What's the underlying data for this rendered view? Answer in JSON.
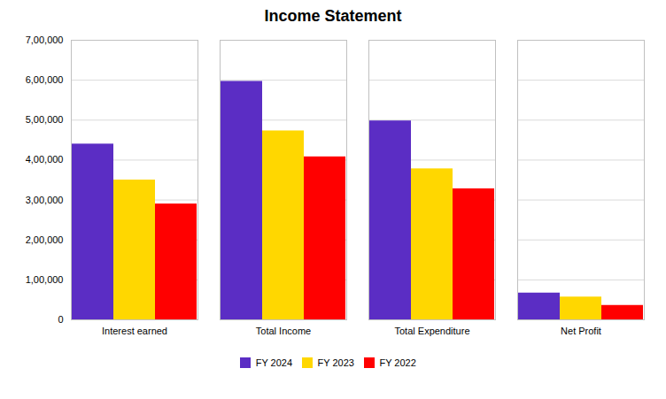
{
  "chart_data": {
    "type": "bar",
    "title": "Income Statement",
    "categories": [
      "Interest earned",
      "Total Income",
      "Total Expenditure",
      "Net Profit"
    ],
    "series": [
      {
        "name": "FY 2024",
        "color": "#5B2DC4",
        "values": [
          440000,
          597000,
          498000,
          67000
        ]
      },
      {
        "name": "FY 2023",
        "color": "#FFD700",
        "values": [
          350000,
          473000,
          378000,
          57000
        ]
      },
      {
        "name": "FY 2022",
        "color": "#FF0000",
        "values": [
          290000,
          408000,
          328000,
          36000
        ]
      }
    ],
    "ylim": [
      0,
      700000
    ],
    "yticks": [
      0,
      {
        "value": 100000,
        "label": "1,00,000"
      },
      {
        "value": 200000,
        "label": "2,00,000"
      },
      {
        "value": 300000,
        "label": "3,00,000"
      },
      {
        "value": 400000,
        "label": "4,00,000"
      },
      {
        "value": 500000,
        "label": "5,00,000"
      },
      {
        "value": 600000,
        "label": "6,00,000"
      },
      {
        "value": 700000,
        "label": "7,00,000"
      }
    ],
    "grid": true,
    "legend": "bottom"
  }
}
